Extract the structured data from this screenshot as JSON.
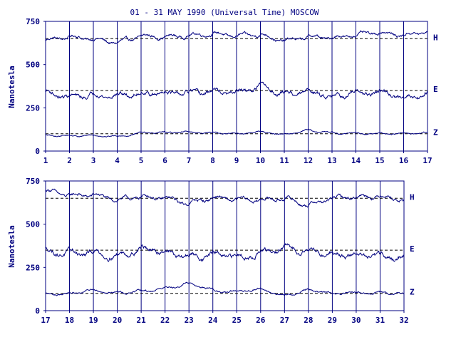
{
  "title": "01 - 31 MAY 1990 (Universal Time) MOSCOW",
  "ylabel": "Nanotesla",
  "colors": {
    "frame": "#000080",
    "trace": "#000080",
    "baseline": "#000000",
    "background": "#ffffff"
  },
  "chart_data": [
    {
      "type": "line",
      "panel": "top",
      "x_ticks": [
        "1",
        "2",
        "3",
        "4",
        "5",
        "6",
        "7",
        "8",
        "9",
        "10",
        "11",
        "12",
        "13",
        "14",
        "15",
        "16",
        "17"
      ],
      "xlim": [
        1,
        17
      ],
      "y_ticks": [
        "0",
        "250",
        "500",
        "750"
      ],
      "ylim": [
        0,
        750
      ],
      "grid": "vertical daily lines",
      "baselines": [
        650,
        350,
        100
      ],
      "series": [
        {
          "name": "H",
          "base": 650,
          "amplitude": 28,
          "x": [
            1,
            2,
            3,
            4,
            5,
            6,
            7,
            8,
            9,
            10,
            11,
            12,
            13,
            14,
            15,
            16,
            17
          ],
          "values": [
            640,
            662,
            648,
            625,
            664,
            660,
            668,
            680,
            665,
            675,
            635,
            660,
            655,
            672,
            685,
            670,
            690
          ]
        },
        {
          "name": "E",
          "base": 350,
          "amplitude": 40,
          "x": [
            1,
            2,
            3,
            4,
            5,
            6,
            7,
            8,
            9,
            10,
            11,
            12,
            13,
            14,
            15,
            16,
            17
          ],
          "values": [
            340,
            310,
            325,
            320,
            330,
            340,
            330,
            345,
            335,
            375,
            330,
            345,
            320,
            330,
            340,
            310,
            335
          ]
        },
        {
          "name": "Z",
          "base": 100,
          "amplitude": 12,
          "x": [
            1,
            2,
            3,
            4,
            5,
            6,
            7,
            8,
            9,
            10,
            11,
            12,
            13,
            14,
            15,
            16,
            17
          ],
          "values": [
            90,
            88,
            90,
            85,
            105,
            108,
            110,
            105,
            100,
            110,
            95,
            120,
            105,
            102,
            100,
            100,
            105
          ]
        }
      ]
    },
    {
      "type": "line",
      "panel": "bottom",
      "x_ticks": [
        "17",
        "18",
        "19",
        "20",
        "21",
        "22",
        "23",
        "24",
        "25",
        "26",
        "27",
        "28",
        "29",
        "30",
        "31",
        "32"
      ],
      "xlim": [
        17,
        32
      ],
      "y_ticks": [
        "0",
        "250",
        "500",
        "750"
      ],
      "ylim": [
        0,
        750
      ],
      "grid": "vertical daily lines",
      "baselines": [
        650,
        350,
        100
      ],
      "series": [
        {
          "name": "H",
          "base": 650,
          "amplitude": 32,
          "x": [
            17,
            18,
            19,
            20,
            21,
            22,
            23,
            24,
            25,
            26,
            27,
            28,
            29,
            30,
            31,
            32
          ],
          "values": [
            695,
            665,
            670,
            640,
            660,
            650,
            620,
            655,
            640,
            640,
            650,
            610,
            650,
            660,
            665,
            640
          ]
        },
        {
          "name": "E",
          "base": 350,
          "amplitude": 45,
          "x": [
            17,
            18,
            19,
            20,
            21,
            22,
            23,
            24,
            25,
            26,
            27,
            28,
            29,
            30,
            31,
            32
          ],
          "values": [
            345,
            330,
            335,
            315,
            360,
            340,
            310,
            325,
            310,
            330,
            360,
            350,
            330,
            320,
            315,
            305
          ]
        },
        {
          "name": "Z",
          "base": 100,
          "amplitude": 18,
          "x": [
            17,
            18,
            19,
            20,
            21,
            22,
            23,
            24,
            25,
            26,
            27,
            28,
            29,
            30,
            31,
            32
          ],
          "values": [
            95,
            100,
            120,
            105,
            110,
            130,
            160,
            120,
            105,
            125,
            85,
            120,
            100,
            105,
            100,
            95
          ]
        }
      ]
    }
  ]
}
